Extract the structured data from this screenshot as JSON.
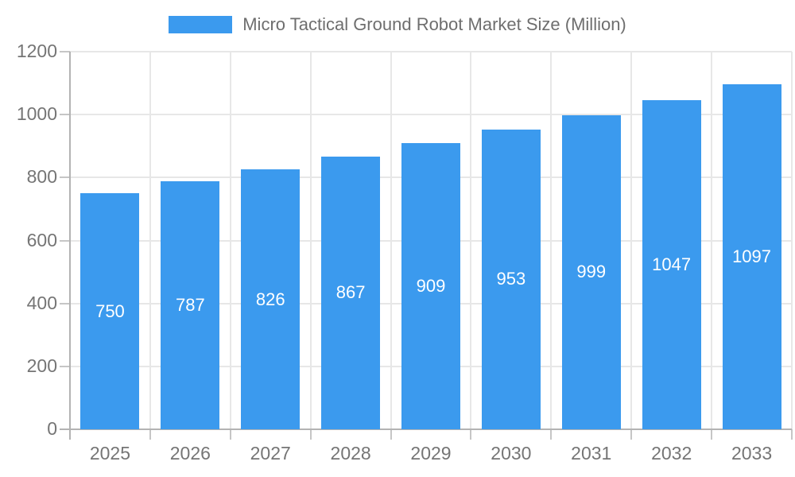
{
  "chart_data": {
    "type": "bar",
    "title": "Micro Tactical Ground Robot Market Size (Million)",
    "legend": [
      "Micro Tactical Ground Robot Market Size (Million)"
    ],
    "legend_position": "top-center",
    "categories": [
      "2025",
      "2026",
      "2027",
      "2028",
      "2029",
      "2030",
      "2031",
      "2032",
      "2033"
    ],
    "values": [
      750,
      787,
      826,
      867,
      909,
      953,
      999,
      1047,
      1097
    ],
    "data_labels": [
      "750",
      "787",
      "826",
      "867",
      "909",
      "953",
      "999",
      "1047",
      "1097"
    ],
    "xlabel": "",
    "ylabel": "",
    "ylim": [
      0,
      1200
    ],
    "yticks": [
      0,
      200,
      400,
      600,
      800,
      1000,
      1200
    ],
    "grid": true,
    "colors": {
      "bar": "#3b9aee",
      "grid": "#e7e7e7",
      "axis": "#b3b3b3",
      "tick": "#c6c6c6",
      "tick_label": "#757575",
      "bar_label": "#ffffff",
      "title": "#6e6e6e",
      "background": "#ffffff"
    }
  }
}
